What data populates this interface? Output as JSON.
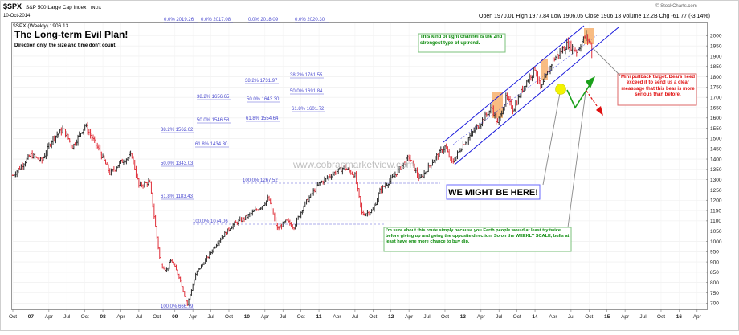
{
  "header": {
    "ticker": "$SPX",
    "name": "S&P 500 Large Cap Index",
    "exchange": "INDX",
    "date": "10-Oct-2014",
    "legend": "$SPX (Weekly) 1906.13",
    "ohlc": "Open 1970.01   High 1977.84   Low 1906.05   Close 1906.13   Volume 12.2B   Chg -61.77 (-3.14%)",
    "copyright": "© StockCharts.com"
  },
  "colors": {
    "up_bar": "#2b2b2b",
    "down_bar": "#e0303a",
    "channel": "#1a1adc",
    "title": "#1a1adc",
    "green_note": "#0a8a0a",
    "red_note": "#e01010",
    "highlight": "#f5a55a",
    "circle": "#f3f300"
  },
  "annotations": {
    "title": "The Long-term Evil Plan!",
    "subtitle": "Direction only, the size and time don't count.",
    "channel_note": "This kind of tight channel is the 2nd strongest type of uptrend.",
    "pullback_note": "Mini pullback target. Bears need exceed it to send us a clear meassage that this bear is more serious than before.",
    "might_be_here": "WE MIGHT BE HERE!",
    "route_note": "I'm sure about this route simply because you Earth people would at least try twice before giving up and going the opposite direction. So on the WEEKLY SCALE, bulls at least have one more chance to buy dip.",
    "watermark": "www.cobrasmarketview.com"
  },
  "chart_data": {
    "type": "ohlc-bar",
    "title": "$SPX S&P 500 Large Cap Index INDX",
    "timeframe": "Weekly",
    "last_close": 1906.13,
    "ylim": [
      670,
      2060
    ],
    "y_ticks": [
      700,
      750,
      800,
      850,
      900,
      950,
      1000,
      1050,
      1100,
      1150,
      1200,
      1250,
      1300,
      1350,
      1400,
      1450,
      1500,
      1550,
      1600,
      1650,
      1700,
      1750,
      1800,
      1850,
      1900,
      1950,
      2000
    ],
    "x_labels": [
      "Oct",
      "07",
      "Apr",
      "Jul",
      "Oct",
      "08",
      "Apr",
      "Jul",
      "Oct",
      "09",
      "Apr",
      "Jul",
      "Oct",
      "10",
      "Apr",
      "Jul",
      "Oct",
      "11",
      "Apr",
      "Jul",
      "Oct",
      "12",
      "Apr",
      "Jul",
      "Oct",
      "13",
      "Apr",
      "Jul",
      "Oct",
      "14",
      "Apr",
      "Jul",
      "Oct",
      "15",
      "Apr",
      "Jul",
      "Oct",
      "16",
      "Apr"
    ],
    "x_start": 2006.75,
    "x_step": 0.25,
    "price_anchors": [
      [
        2006.75,
        1320
      ],
      [
        2007.0,
        1420
      ],
      [
        2007.15,
        1390
      ],
      [
        2007.3,
        1500
      ],
      [
        2007.45,
        1545
      ],
      [
        2007.58,
        1460
      ],
      [
        2007.75,
        1565
      ],
      [
        2007.95,
        1440
      ],
      [
        2008.1,
        1330
      ],
      [
        2008.25,
        1385
      ],
      [
        2008.4,
        1420
      ],
      [
        2008.5,
        1270
      ],
      [
        2008.65,
        1290
      ],
      [
        2008.72,
        1100
      ],
      [
        2008.8,
        890
      ],
      [
        2008.88,
        860
      ],
      [
        2008.95,
        910
      ],
      [
        2009.07,
        820
      ],
      [
        2009.17,
        690
      ],
      [
        2009.3,
        850
      ],
      [
        2009.45,
        920
      ],
      [
        2009.6,
        1000
      ],
      [
        2009.8,
        1080
      ],
      [
        2010.0,
        1120
      ],
      [
        2010.2,
        1170
      ],
      [
        2010.3,
        1210
      ],
      [
        2010.42,
        1060
      ],
      [
        2010.55,
        1100
      ],
      [
        2010.65,
        1070
      ],
      [
        2010.8,
        1180
      ],
      [
        2011.0,
        1280
      ],
      [
        2011.2,
        1330
      ],
      [
        2011.35,
        1360
      ],
      [
        2011.5,
        1320
      ],
      [
        2011.6,
        1130
      ],
      [
        2011.75,
        1150
      ],
      [
        2011.85,
        1250
      ],
      [
        2012.0,
        1300
      ],
      [
        2012.25,
        1410
      ],
      [
        2012.4,
        1300
      ],
      [
        2012.6,
        1400
      ],
      [
        2012.75,
        1460
      ],
      [
        2012.85,
        1380
      ],
      [
        2013.0,
        1470
      ],
      [
        2013.25,
        1580
      ],
      [
        2013.4,
        1650
      ],
      [
        2013.48,
        1570
      ],
      [
        2013.6,
        1700
      ],
      [
        2013.7,
        1640
      ],
      [
        2013.85,
        1760
      ],
      [
        2014.0,
        1840
      ],
      [
        2014.08,
        1740
      ],
      [
        2014.25,
        1880
      ],
      [
        2014.45,
        1960
      ],
      [
        2014.58,
        1925
      ],
      [
        2014.7,
        2000
      ],
      [
        2014.77,
        1960
      ],
      [
        2014.79,
        1906.13
      ]
    ],
    "fib_labels": [
      {
        "text": "0.0% 2019.26",
        "c": "#4a4ad0"
      },
      {
        "text": "0.0% 2017.08",
        "c": "#4a4ad0"
      },
      {
        "text": "0.0% 2018.09",
        "c": "#4a4ad0"
      },
      {
        "text": "0.0% 2020.30",
        "c": "#4a4ad0"
      },
      {
        "text": "38.2% 1761.55",
        "c": "#4a4ad0"
      },
      {
        "text": "38.2% 1731.97",
        "c": "#4a4ad0"
      },
      {
        "text": "50.0% 1691.84",
        "c": "#4a4ad0"
      },
      {
        "text": "38.2% 1656.65",
        "c": "#4a4ad0"
      },
      {
        "text": "50.0% 1643.30",
        "c": "#4a4ad0"
      },
      {
        "text": "61.8% 1601.72",
        "c": "#4a4ad0"
      },
      {
        "text": "50.0% 1546.58",
        "c": "#4a4ad0"
      },
      {
        "text": "61.8% 1554.64",
        "c": "#4a4ad0"
      },
      {
        "text": "38.2% 1562.62",
        "c": "#4a4ad0"
      },
      {
        "text": "61.8% 1434.30",
        "c": "#4a4ad0"
      },
      {
        "text": "50.0% 1343.03",
        "c": "#4a4ad0"
      },
      {
        "text": "100.0% 1267.52",
        "c": "#4a4ad0"
      },
      {
        "text": "61.8% 1183.43",
        "c": "#4a4ad0"
      },
      {
        "text": "100.0% 1074.06",
        "c": "#4a4ad0"
      },
      {
        "text": "100.0% 666.79",
        "c": "#4a4ad0"
      }
    ]
  }
}
